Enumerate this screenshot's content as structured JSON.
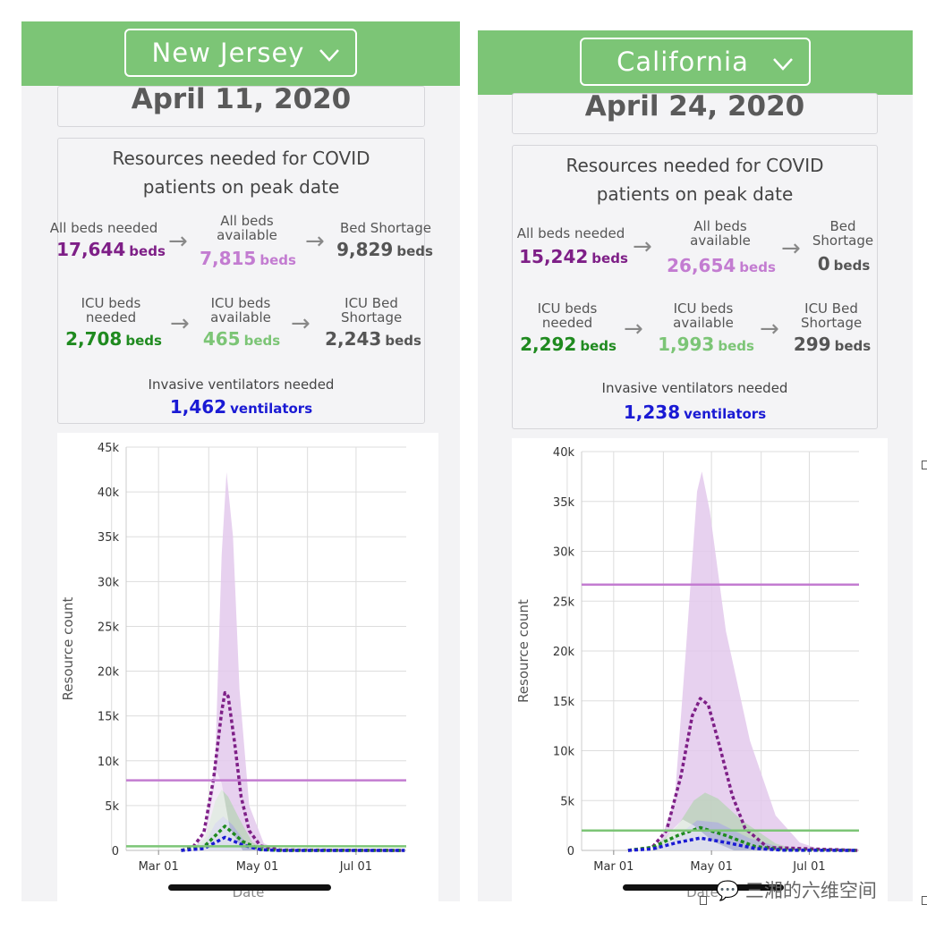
{
  "panels": [
    {
      "state": "New Jersey",
      "date": "April 11, 2020",
      "resources_title": "Resources needed for COVID patients on peak date",
      "beds": {
        "needed_label": "All beds needed",
        "needed_value": "17,644",
        "needed_unit": "beds",
        "available_label": "All beds available",
        "available_value": "7,815",
        "available_unit": "beds",
        "shortage_label": "Bed Shortage",
        "shortage_value": "9,829",
        "shortage_unit": "beds"
      },
      "icu": {
        "needed_label": "ICU beds needed",
        "needed_value": "2,708",
        "needed_unit": "beds",
        "available_label": "ICU beds available",
        "available_value": "465",
        "available_unit": "beds",
        "shortage_label": "ICU Bed Shortage",
        "shortage_value": "2,243",
        "shortage_unit": "beds"
      },
      "ventilators": {
        "label": "Invasive ventilators needed",
        "value": "1,462",
        "unit": "ventilators"
      }
    },
    {
      "state": "California",
      "date": "April 24, 2020",
      "resources_title": "Resources needed for COVID patients on peak date",
      "beds": {
        "needed_label": "All beds needed",
        "needed_value": "15,242",
        "needed_unit": "beds",
        "available_label": "All beds available",
        "available_value": "26,654",
        "available_unit": "beds",
        "shortage_label": "Bed Shortage",
        "shortage_value": "0",
        "shortage_unit": "beds"
      },
      "icu": {
        "needed_label": "ICU beds needed",
        "needed_value": "2,292",
        "needed_unit": "beds",
        "available_label": "ICU beds available",
        "available_value": "1,993",
        "available_unit": "beds",
        "shortage_label": "ICU Bed Shortage",
        "shortage_value": "299",
        "shortage_unit": "beds"
      },
      "ventilators": {
        "label": "Invasive ventilators needed",
        "value": "1,238",
        "unit": "ventilators"
      }
    }
  ],
  "colors": {
    "header": "#7cc576",
    "all_beds": "#7e1f87",
    "all_beds_band": "#e3c9ec",
    "beds_available": "#c37cd1",
    "icu": "#1f8a1f",
    "icu_available": "#7cc576",
    "ventilators": "#1a1ad4"
  },
  "icons": {
    "dropdown": "chevron-down-icon",
    "arrow": "arrow-right-icon"
  },
  "watermark": "三湘的六维空间",
  "chart_data": [
    {
      "type": "line",
      "ylabel": "Resource count",
      "xlabel": "Date",
      "x_ticks": [
        "Mar 01",
        "May 01",
        "Jul 01"
      ],
      "y_ticks": [
        "0",
        "5k",
        "10k",
        "15k",
        "20k",
        "25k",
        "30k",
        "35k",
        "40k",
        "45k"
      ],
      "ylim": [
        0,
        45000
      ],
      "xlim": [
        "2020-02-10",
        "2020-08-01"
      ],
      "grid": true,
      "peak_date": "2020-04-11",
      "series": [
        {
          "x": [
            "2020-03-15",
            "2020-03-22",
            "2020-03-29",
            "2020-04-04",
            "2020-04-09",
            "2020-04-11",
            "2020-04-13",
            "2020-04-17",
            "2020-04-21",
            "2020-04-26",
            "2020-05-03",
            "2020-05-15",
            "2020-07-31"
          ],
          "values": [
            0,
            300,
            2000,
            8000,
            15500,
            17600,
            17200,
            12000,
            6000,
            2200,
            500,
            50,
            0
          ]
        },
        {
          "x": [
            "2020-03-15",
            "2020-03-29",
            "2020-04-11",
            "2020-04-22",
            "2020-05-03",
            "2020-05-15",
            "2020-07-31"
          ],
          "values": [
            0,
            400,
            2700,
            1000,
            100,
            0,
            0
          ]
        },
        {
          "x": [
            "2020-03-15",
            "2020-03-29",
            "2020-04-11",
            "2020-04-22",
            "2020-05-03",
            "2020-05-15",
            "2020-07-31"
          ],
          "values": [
            0,
            200,
            1460,
            600,
            80,
            0,
            0
          ]
        },
        {
          "x": [
            "2020-02-10",
            "2020-08-01"
          ],
          "values": [
            7815,
            7815
          ]
        },
        {
          "x": [
            "2020-02-10",
            "2020-08-01"
          ],
          "values": [
            465,
            465
          ]
        }
      ],
      "bands": [
        {
          "x": [
            "2020-03-22",
            "2020-03-30",
            "2020-04-05",
            "2020-04-09",
            "2020-04-12",
            "2020-04-16",
            "2020-04-20",
            "2020-04-26",
            "2020-05-05",
            "2020-05-15"
          ],
          "values": [
            0,
            2000,
            10000,
            33000,
            42200,
            35000,
            18000,
            5000,
            800,
            0
          ]
        },
        {
          "x": [
            "2020-03-22",
            "2020-03-30",
            "2020-04-05",
            "2020-04-09",
            "2020-04-13",
            "2020-04-20",
            "2020-04-28",
            "2020-05-08"
          ],
          "values": [
            0,
            1500,
            5500,
            6800,
            6000,
            3500,
            900,
            0
          ]
        },
        {
          "x": [
            "2020-03-22",
            "2020-03-30",
            "2020-04-05",
            "2020-04-10",
            "2020-04-16",
            "2020-04-24",
            "2020-05-03"
          ],
          "values": [
            0,
            900,
            3000,
            3800,
            2800,
            800,
            0
          ]
        },
        {
          "x": [
            "2020-03-24",
            "2020-03-31",
            "2020-04-06",
            "2020-04-09",
            "2020-04-14",
            "2020-04-22"
          ],
          "values": [
            0,
            2500,
            8800,
            7500,
            2500,
            0
          ]
        }
      ]
    },
    {
      "type": "line",
      "ylabel": "Resource count",
      "xlabel": "Date",
      "x_ticks": [
        "Mar 01",
        "May 01",
        "Jul 01"
      ],
      "y_ticks": [
        "0",
        "5k",
        "10k",
        "15k",
        "20k",
        "25k",
        "30k",
        "35k",
        "40k"
      ],
      "ylim": [
        0,
        40000
      ],
      "xlim": [
        "2020-02-10",
        "2020-08-01"
      ],
      "grid": true,
      "peak_date": "2020-04-24",
      "series": [
        {
          "x": [
            "2020-03-10",
            "2020-03-25",
            "2020-04-03",
            "2020-04-12",
            "2020-04-19",
            "2020-04-24",
            "2020-04-29",
            "2020-05-06",
            "2020-05-14",
            "2020-05-22",
            "2020-06-05",
            "2020-07-31"
          ],
          "values": [
            0,
            300,
            2000,
            7500,
            13500,
            15240,
            14600,
            10500,
            5500,
            2200,
            300,
            0
          ]
        },
        {
          "x": [
            "2020-03-10",
            "2020-03-25",
            "2020-04-10",
            "2020-04-24",
            "2020-05-10",
            "2020-05-28",
            "2020-06-15",
            "2020-07-31"
          ],
          "values": [
            0,
            300,
            1500,
            2290,
            1500,
            400,
            50,
            0
          ]
        },
        {
          "x": [
            "2020-03-10",
            "2020-03-25",
            "2020-04-10",
            "2020-04-24",
            "2020-05-10",
            "2020-05-28",
            "2020-06-15",
            "2020-07-31"
          ],
          "values": [
            0,
            150,
            800,
            1240,
            800,
            200,
            20,
            0
          ]
        },
        {
          "x": [
            "2020-02-10",
            "2020-08-01"
          ],
          "values": [
            26654,
            26654
          ]
        },
        {
          "x": [
            "2020-02-10",
            "2020-08-01"
          ],
          "values": [
            1993,
            1993
          ]
        }
      ],
      "bands": [
        {
          "x": [
            "2020-03-28",
            "2020-04-08",
            "2020-04-15",
            "2020-04-22",
            "2020-04-25",
            "2020-04-30",
            "2020-05-10",
            "2020-05-25",
            "2020-06-10",
            "2020-06-25",
            "2020-07-10"
          ],
          "values": [
            0,
            5000,
            20000,
            36000,
            38000,
            34000,
            22000,
            11000,
            3500,
            800,
            0
          ]
        },
        {
          "x": [
            "2020-03-25",
            "2020-04-10",
            "2020-04-20",
            "2020-04-27",
            "2020-05-05",
            "2020-05-20",
            "2020-06-10",
            "2020-06-25"
          ],
          "values": [
            0,
            2500,
            5000,
            5800,
            5200,
            3000,
            700,
            0
          ]
        },
        {
          "x": [
            "2020-03-25",
            "2020-04-10",
            "2020-04-22",
            "2020-05-05",
            "2020-05-25",
            "2020-06-20"
          ],
          "values": [
            0,
            1500,
            3000,
            2800,
            1200,
            0
          ]
        },
        {
          "x": [
            "2020-03-28",
            "2020-04-06",
            "2020-04-13",
            "2020-04-20",
            "2020-05-02",
            "2020-05-15"
          ],
          "values": [
            0,
            2000,
            3100,
            2500,
            900,
            0
          ]
        }
      ]
    }
  ]
}
